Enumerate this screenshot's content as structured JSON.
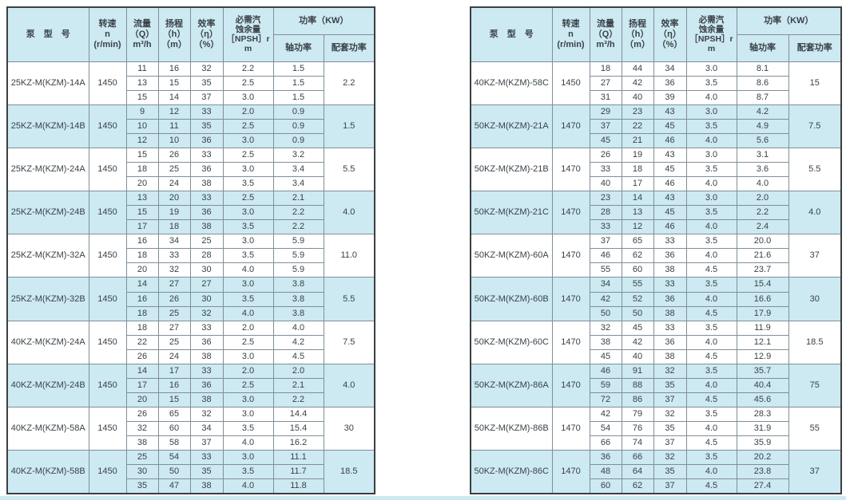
{
  "colors": {
    "header_bg": "#cde9f2",
    "highlight_bg": "#cde9f2",
    "row_bg": "#ffffff",
    "grid_line": "#7f8f99",
    "outer_border": "#3a3f44",
    "text": "#3a4248",
    "bottom_strip": "#cde9f2"
  },
  "header": {
    "model": "泵　型　号",
    "speed_lines": [
      "转速",
      "n",
      "(r/min)"
    ],
    "flow_lines": [
      "流量",
      "（Q）",
      "m³/h"
    ],
    "head_lines": [
      "扬程",
      "（h）",
      "（m）"
    ],
    "efficiency_lines": [
      "效率",
      "（η）",
      "（%）"
    ],
    "npsh_lines": [
      "必需汽",
      "蚀余量",
      "［NPSH］r",
      "m"
    ],
    "power_group": "功率（KW）",
    "shaft_power": "轴功率",
    "matching_power": "配套功率"
  },
  "tables": [
    {
      "id": "left",
      "blocks": [
        {
          "model": "25KZ-M(KZM)-14A",
          "speed": "1450",
          "highlight": false,
          "matching": "2.2",
          "points": [
            [
              "11",
              "16",
              "32",
              "2.2",
              "1.5"
            ],
            [
              "13",
              "15",
              "35",
              "2.5",
              "1.5"
            ],
            [
              "15",
              "14",
              "37",
              "3.0",
              "1.5"
            ]
          ]
        },
        {
          "model": "25KZ-M(KZM)-14B",
          "speed": "1450",
          "highlight": true,
          "matching": "1.5",
          "points": [
            [
              "9",
              "12",
              "33",
              "2.0",
              "0.9"
            ],
            [
              "10",
              "11",
              "35",
              "2.5",
              "0.9"
            ],
            [
              "12",
              "10",
              "36",
              "3.0",
              "0.9"
            ]
          ]
        },
        {
          "model": "25KZ-M(KZM)-24A",
          "speed": "1450",
          "highlight": false,
          "matching": "5.5",
          "points": [
            [
              "15",
              "26",
              "33",
              "2.5",
              "3.2"
            ],
            [
              "18",
              "25",
              "36",
              "3.0",
              "3.4"
            ],
            [
              "20",
              "24",
              "38",
              "3.5",
              "3.4"
            ]
          ]
        },
        {
          "model": "25KZ-M(KZM)-24B",
          "speed": "1450",
          "highlight": true,
          "matching": "4.0",
          "points": [
            [
              "13",
              "20",
              "33",
              "2.5",
              "2.1"
            ],
            [
              "15",
              "19",
              "36",
              "3.0",
              "2.2"
            ],
            [
              "17",
              "18",
              "38",
              "3.5",
              "2.2"
            ]
          ]
        },
        {
          "model": "25KZ-M(KZM)-32A",
          "speed": "1450",
          "highlight": false,
          "matching": "11.0",
          "points": [
            [
              "16",
              "34",
              "25",
              "3.0",
              "5.9"
            ],
            [
              "18",
              "33",
              "28",
              "3.5",
              "5.9"
            ],
            [
              "20",
              "32",
              "30",
              "4.0",
              "5.9"
            ]
          ]
        },
        {
          "model": "25KZ-M(KZM)-32B",
          "speed": "1450",
          "highlight": true,
          "matching": "5.5",
          "points": [
            [
              "14",
              "27",
              "27",
              "3.0",
              "3.8"
            ],
            [
              "16",
              "26",
              "30",
              "3.5",
              "3.8"
            ],
            [
              "18",
              "25",
              "32",
              "4.0",
              "3.8"
            ]
          ]
        },
        {
          "model": "40KZ-M(KZM)-24A",
          "speed": "1450",
          "highlight": false,
          "matching": "7.5",
          "points": [
            [
              "18",
              "27",
              "33",
              "2.0",
              "4.0"
            ],
            [
              "22",
              "25",
              "36",
              "2.5",
              "4.2"
            ],
            [
              "26",
              "24",
              "38",
              "3.0",
              "4.5"
            ]
          ]
        },
        {
          "model": "40KZ-M(KZM)-24B",
          "speed": "1450",
          "highlight": true,
          "matching": "4.0",
          "points": [
            [
              "14",
              "17",
              "33",
              "2.0",
              "2.0"
            ],
            [
              "17",
              "16",
              "36",
              "2.5",
              "2.1"
            ],
            [
              "20",
              "15",
              "38",
              "3.0",
              "2.2"
            ]
          ]
        },
        {
          "model": "40KZ-M(KZM)-58A",
          "speed": "1450",
          "highlight": false,
          "matching": "30",
          "points": [
            [
              "26",
              "65",
              "32",
              "3.0",
              "14.4"
            ],
            [
              "32",
              "60",
              "34",
              "3.5",
              "15.4"
            ],
            [
              "38",
              "58",
              "37",
              "4.0",
              "16.2"
            ]
          ]
        },
        {
          "model": "40KZ-M(KZM)-58B",
          "speed": "1450",
          "highlight": true,
          "matching": "18.5",
          "points": [
            [
              "25",
              "54",
              "33",
              "3.0",
              "11.1"
            ],
            [
              "30",
              "50",
              "35",
              "3.5",
              "11.7"
            ],
            [
              "35",
              "47",
              "38",
              "4.0",
              "11.8"
            ]
          ]
        }
      ]
    },
    {
      "id": "right",
      "blocks": [
        {
          "model": "40KZ-M(KZM)-58C",
          "speed": "1450",
          "highlight": false,
          "matching": "15",
          "points": [
            [
              "18",
              "44",
              "34",
              "3.0",
              "8.1"
            ],
            [
              "27",
              "42",
              "36",
              "3.5",
              "8.6"
            ],
            [
              "31",
              "40",
              "39",
              "4.0",
              "8.7"
            ]
          ]
        },
        {
          "model": "50KZ-M(KZM)-21A",
          "speed": "1470",
          "highlight": true,
          "matching": "7.5",
          "points": [
            [
              "29",
              "23",
              "43",
              "3.0",
              "4.2"
            ],
            [
              "37",
              "22",
              "45",
              "3.5",
              "4.9"
            ],
            [
              "45",
              "21",
              "46",
              "4.0",
              "5.6"
            ]
          ]
        },
        {
          "model": "50KZ-M(KZM)-21B",
          "speed": "1470",
          "highlight": false,
          "matching": "5.5",
          "points": [
            [
              "26",
              "19",
              "43",
              "3.0",
              "3.1"
            ],
            [
              "33",
              "18",
              "45",
              "3.5",
              "3.6"
            ],
            [
              "40",
              "17",
              "46",
              "4.0",
              "4.0"
            ]
          ]
        },
        {
          "model": "50KZ-M(KZM)-21C",
          "speed": "1470",
          "highlight": true,
          "matching": "4.0",
          "points": [
            [
              "23",
              "14",
              "43",
              "3.0",
              "2.0"
            ],
            [
              "28",
              "13",
              "45",
              "3.5",
              "2.2"
            ],
            [
              "33",
              "12",
              "46",
              "4.0",
              "2.4"
            ]
          ]
        },
        {
          "model": "50KZ-M(KZM)-60A",
          "speed": "1470",
          "highlight": false,
          "matching": "37",
          "points": [
            [
              "37",
              "65",
              "33",
              "3.5",
              "20.0"
            ],
            [
              "46",
              "62",
              "36",
              "4.0",
              "21.6"
            ],
            [
              "55",
              "60",
              "38",
              "4.5",
              "23.7"
            ]
          ]
        },
        {
          "model": "50KZ-M(KZM)-60B",
          "speed": "1470",
          "highlight": true,
          "matching": "30",
          "points": [
            [
              "34",
              "55",
              "33",
              "3.5",
              "15.4"
            ],
            [
              "42",
              "52",
              "36",
              "4.0",
              "16.6"
            ],
            [
              "50",
              "50",
              "38",
              "4.5",
              "17.9"
            ]
          ]
        },
        {
          "model": "50KZ-M(KZM)-60C",
          "speed": "1470",
          "highlight": false,
          "matching": "18.5",
          "points": [
            [
              "32",
              "45",
              "33",
              "3.5",
              "11.9"
            ],
            [
              "38",
              "42",
              "36",
              "4.0",
              "12.1"
            ],
            [
              "45",
              "40",
              "38",
              "4.5",
              "12.9"
            ]
          ]
        },
        {
          "model": "50KZ-M(KZM)-86A",
          "speed": "1470",
          "highlight": true,
          "matching": "75",
          "points": [
            [
              "46",
              "91",
              "32",
              "3.5",
              "35.7"
            ],
            [
              "59",
              "88",
              "35",
              "4.0",
              "40.4"
            ],
            [
              "72",
              "86",
              "37",
              "4.5",
              "45.6"
            ]
          ]
        },
        {
          "model": "50KZ-M(KZM)-86B",
          "speed": "1470",
          "highlight": false,
          "matching": "55",
          "points": [
            [
              "42",
              "79",
              "32",
              "3.5",
              "28.3"
            ],
            [
              "54",
              "76",
              "35",
              "4.0",
              "31.9"
            ],
            [
              "66",
              "74",
              "37",
              "4.5",
              "35.9"
            ]
          ]
        },
        {
          "model": "50KZ-M(KZM)-86C",
          "speed": "1470",
          "highlight": true,
          "matching": "37",
          "points": [
            [
              "36",
              "66",
              "32",
              "3.5",
              "20.2"
            ],
            [
              "48",
              "64",
              "35",
              "4.0",
              "23.8"
            ],
            [
              "60",
              "62",
              "37",
              "4.5",
              "27.4"
            ]
          ]
        }
      ]
    }
  ]
}
